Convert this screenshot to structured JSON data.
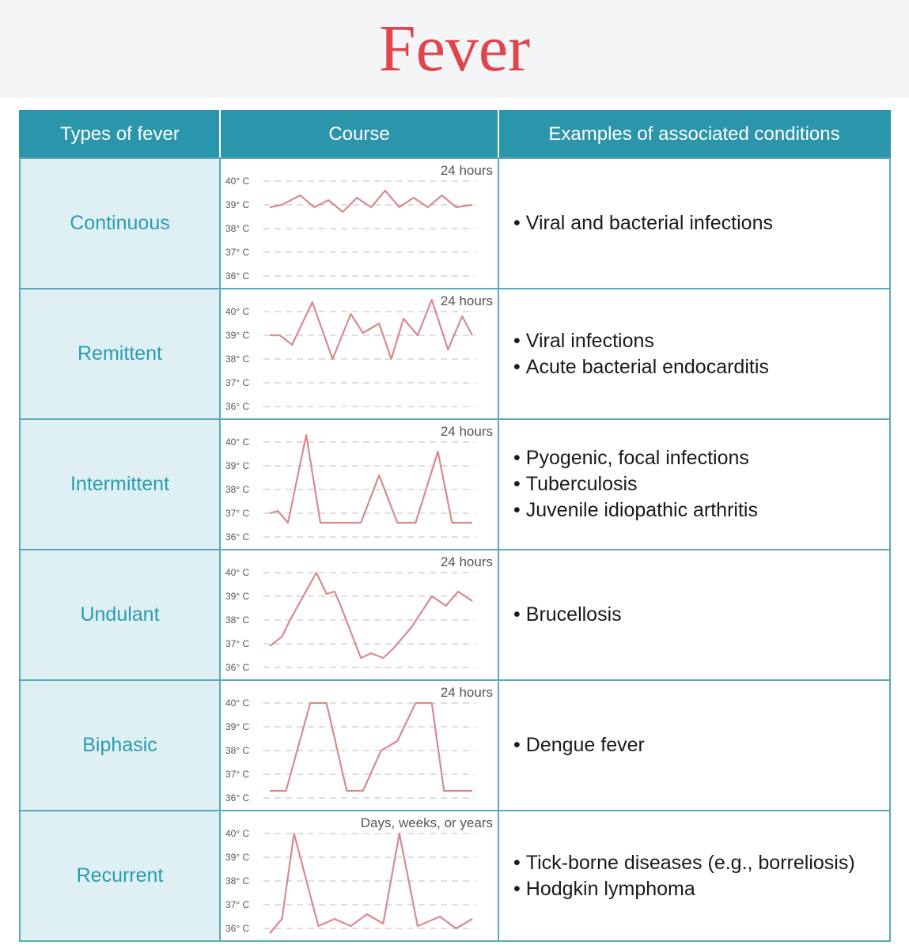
{
  "title": "Fever",
  "headers": {
    "type": "Types of fever",
    "course": "Course",
    "conditions": "Examples of associated conditions"
  },
  "axis": {
    "ticks": [
      "40° C",
      "39° C",
      "38° C",
      "37° C",
      "36° C"
    ],
    "tick_values": [
      40,
      39,
      38,
      37,
      36
    ]
  },
  "colors": {
    "title": "#e0444c",
    "header_bg": "#2b95ab",
    "type_bg": "#dff0f5",
    "type_text": "#2a9cb0",
    "curve": "#d98a8c",
    "grid": "#c9c9c9",
    "border": "#5ba9b8"
  },
  "rows": [
    {
      "type": "Continuous",
      "duration": "24 hours",
      "conditions": [
        "Viral and bacterial infections"
      ],
      "chart_data": {
        "type": "line",
        "x": [
          0,
          0.06,
          0.15,
          0.22,
          0.29,
          0.36,
          0.43,
          0.5,
          0.57,
          0.64,
          0.71,
          0.78,
          0.85,
          0.92,
          1.0
        ],
        "y": [
          38.9,
          39.0,
          39.4,
          38.9,
          39.2,
          38.7,
          39.3,
          38.9,
          39.6,
          38.9,
          39.3,
          38.9,
          39.4,
          38.9,
          39.0
        ]
      }
    },
    {
      "type": "Remittent",
      "duration": "24 hours",
      "conditions": [
        "Viral infections",
        "Acute bacterial endocarditis"
      ],
      "chart_data": {
        "type": "line",
        "x": [
          0,
          0.05,
          0.11,
          0.21,
          0.31,
          0.4,
          0.46,
          0.54,
          0.6,
          0.66,
          0.73,
          0.8,
          0.88,
          0.95,
          1.0
        ],
        "y": [
          39.0,
          39.0,
          38.6,
          40.4,
          38.0,
          39.9,
          39.1,
          39.5,
          38.0,
          39.7,
          39.0,
          40.5,
          38.4,
          39.8,
          39.0
        ]
      }
    },
    {
      "type": "Intermittent",
      "duration": "24 hours",
      "conditions": [
        "Pyogenic, focal infections",
        "Tuberculosis",
        "Juvenile idiopathic arthritis"
      ],
      "chart_data": {
        "type": "line",
        "x": [
          0,
          0.04,
          0.09,
          0.18,
          0.25,
          0.45,
          0.54,
          0.63,
          0.72,
          0.83,
          0.9,
          1.0
        ],
        "y": [
          37.0,
          37.1,
          36.6,
          40.3,
          36.6,
          36.6,
          38.6,
          36.6,
          36.6,
          39.6,
          36.6,
          36.6
        ]
      }
    },
    {
      "type": "Undulant",
      "duration": "24 hours",
      "conditions": [
        "Brucellosis"
      ],
      "chart_data": {
        "type": "line",
        "x": [
          0,
          0.06,
          0.1,
          0.23,
          0.28,
          0.32,
          0.35,
          0.45,
          0.5,
          0.56,
          0.61,
          0.7,
          0.8,
          0.87,
          0.93,
          1.0
        ],
        "y": [
          36.9,
          37.3,
          38.0,
          40.0,
          39.1,
          39.2,
          38.6,
          36.4,
          36.6,
          36.4,
          36.8,
          37.7,
          39.0,
          38.6,
          39.2,
          38.8
        ]
      }
    },
    {
      "type": "Biphasic",
      "duration": "24 hours",
      "conditions": [
        "Dengue fever"
      ],
      "chart_data": {
        "type": "line",
        "x": [
          0,
          0.08,
          0.2,
          0.28,
          0.38,
          0.46,
          0.55,
          0.63,
          0.72,
          0.8,
          0.86,
          1.0
        ],
        "y": [
          36.3,
          36.3,
          40.0,
          40.0,
          36.3,
          36.3,
          38.0,
          38.4,
          40.0,
          40.0,
          36.3,
          36.3
        ]
      }
    },
    {
      "type": "Recurrent",
      "duration": "Days, weeks, or years",
      "conditions": [
        "Tick-borne diseases (e.g., borreliosis)",
        "Hodgkin lymphoma"
      ],
      "chart_data": {
        "type": "line",
        "x": [
          0,
          0.06,
          0.12,
          0.24,
          0.32,
          0.4,
          0.48,
          0.56,
          0.64,
          0.73,
          0.84,
          0.92,
          1.0
        ],
        "y": [
          35.8,
          36.4,
          40.0,
          36.1,
          36.4,
          36.1,
          36.6,
          36.2,
          40.0,
          36.1,
          36.5,
          36.0,
          36.4
        ]
      }
    }
  ]
}
